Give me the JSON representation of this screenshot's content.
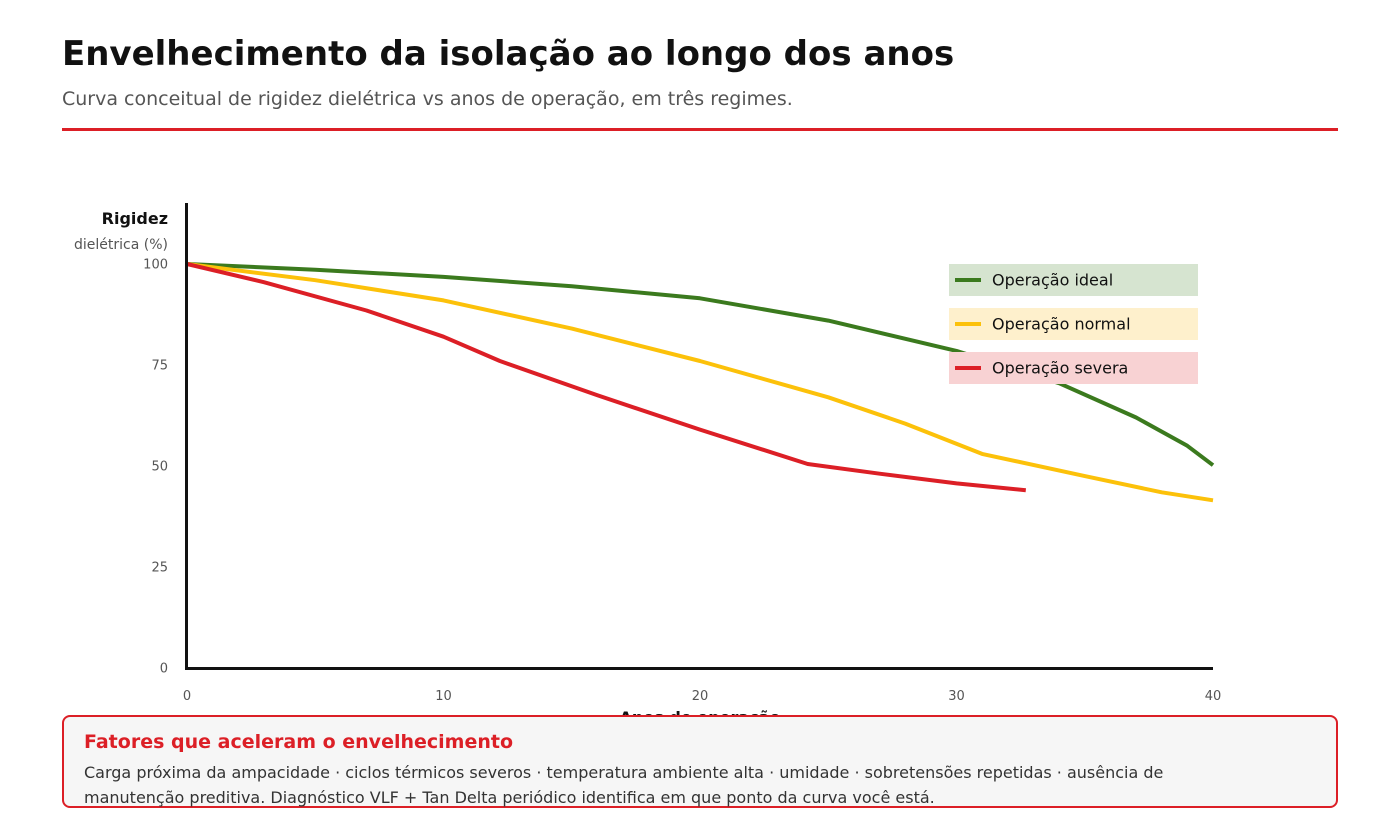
{
  "header": {
    "title": "Envelhecimento da isolação ao longo dos anos",
    "subtitle": "Curva conceitual de rigidez dielétrica vs anos de operação, em três regimes."
  },
  "colors": {
    "accent": "#dc1f26",
    "ideal": "#3b7a1e",
    "normal": "#fcc10a",
    "severa": "#dc1f26"
  },
  "chart_data": {
    "type": "line",
    "ylabel": "Rigidez",
    "ylabel_sub": "dielétrica (%)",
    "xlabel": "Anos de operação",
    "xlim": [
      0,
      40
    ],
    "ylim": [
      0,
      100
    ],
    "x_ticks": [
      0,
      10,
      20,
      30,
      40
    ],
    "y_ticks": [
      0,
      25,
      50,
      75,
      100
    ],
    "y_tick_labels": [
      "0",
      "25",
      "50",
      "75",
      "100"
    ],
    "grid": false,
    "legend_position": "top-right",
    "series": [
      {
        "name": "Operação ideal",
        "color": "#3b7a1e",
        "legend_bg": "#d6e4d0",
        "points": [
          [
            0,
            100
          ],
          [
            5,
            98.6
          ],
          [
            10,
            96.8
          ],
          [
            15,
            94.5
          ],
          [
            20,
            91.5
          ],
          [
            25,
            86
          ],
          [
            30,
            78.5
          ],
          [
            34,
            70.5
          ],
          [
            37,
            62
          ],
          [
            39,
            55
          ],
          [
            40,
            50.2
          ]
        ]
      },
      {
        "name": "Operação normal",
        "color": "#fcc10a",
        "legend_bg": "#fef0cc",
        "points": [
          [
            0,
            100
          ],
          [
            5,
            96
          ],
          [
            10,
            91
          ],
          [
            15,
            84
          ],
          [
            20,
            76
          ],
          [
            25,
            67
          ],
          [
            28,
            60.5
          ],
          [
            31,
            53
          ],
          [
            35,
            47.5
          ],
          [
            38,
            43.5
          ],
          [
            40,
            41.5
          ]
        ]
      },
      {
        "name": "Operação severa",
        "color": "#dc1f26",
        "legend_bg": "#f8d2d3",
        "points": [
          [
            0,
            100
          ],
          [
            3,
            95.5
          ],
          [
            7,
            88.5
          ],
          [
            10,
            82
          ],
          [
            12.2,
            76
          ],
          [
            16,
            67.5
          ],
          [
            20,
            59
          ],
          [
            24.2,
            50.5
          ],
          [
            27,
            48.1
          ],
          [
            30,
            45.7
          ],
          [
            32.7,
            44
          ]
        ]
      }
    ]
  },
  "info_box": {
    "title": "Fatores que aceleram o envelhecimento",
    "text": "Carga próxima da ampacidade · ciclos térmicos severos · temperatura ambiente alta · umidade · sobretensões repetidas · ausência de manutenção preditiva. Diagnóstico VLF + Tan Delta periódico identifica em que ponto da curva você está."
  }
}
